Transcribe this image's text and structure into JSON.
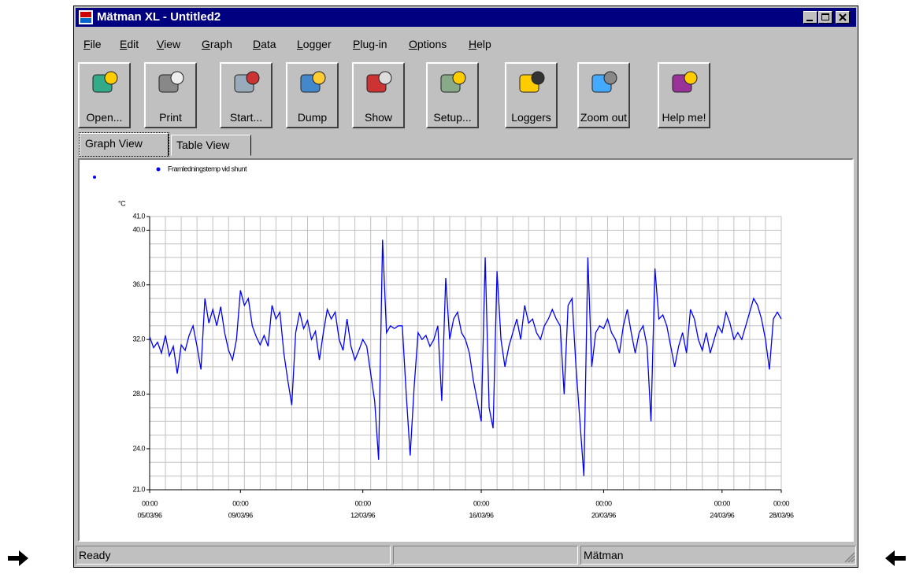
{
  "window": {
    "title": "Mätman XL - Untitled2"
  },
  "menu": [
    "File",
    "Edit",
    "View",
    "Graph",
    "Data",
    "Logger",
    "Plug-in",
    "Options",
    "Help"
  ],
  "toolbar": [
    "Open...",
    "Print",
    "Start...",
    "Dump",
    "Show",
    "Setup...",
    "Loggers",
    "Zoom out",
    "Help me!"
  ],
  "tabs": [
    "Graph View",
    "Table View"
  ],
  "status": [
    "Ready",
    "Mätman"
  ],
  "chart_data": {
    "type": "line",
    "ylabel": "°C",
    "series": [
      {
        "name": "Framledningstemp vid shunt",
        "color": "#0000ff",
        "values": [
          32.2,
          31.4,
          31.8,
          31.0,
          32.3,
          30.8,
          31.5,
          29.5,
          31.6,
          31.2,
          32.3,
          33.0,
          31.5,
          29.8,
          35.0,
          33.2,
          34.2,
          33.0,
          34.4,
          32.5,
          31.2,
          30.5,
          32.0,
          35.6,
          34.5,
          35.0,
          33.0,
          32.2,
          31.6,
          32.3,
          31.5,
          34.5,
          33.5,
          34.0,
          31.0,
          29.0,
          27.2,
          32.5,
          34.0,
          32.8,
          33.4,
          32.0,
          32.6,
          30.5,
          32.5,
          34.2,
          33.5,
          34.0,
          32.0,
          31.2,
          33.5,
          31.5,
          30.5,
          31.2,
          32.0,
          31.5,
          29.5,
          27.5,
          23.2,
          39.3,
          32.5,
          33.0,
          32.8,
          33.0,
          33.0,
          28.0,
          23.5,
          28.5,
          32.5,
          32.0,
          32.3,
          31.5,
          32.0,
          33.0,
          27.5,
          36.5,
          32.0,
          33.5,
          34.0,
          32.5,
          32.0,
          31.0,
          29.0,
          27.5,
          26.0,
          38.0,
          27.0,
          25.5,
          37.0,
          32.0,
          30.0,
          31.5,
          32.5,
          33.5,
          32.0,
          34.5,
          33.2,
          33.5,
          32.5,
          32.0,
          33.0,
          33.5,
          34.2,
          33.5,
          33.0,
          28.0,
          34.5,
          35.0,
          30.0,
          26.0,
          22.0,
          38.0,
          30.0,
          32.5,
          33.0,
          32.8,
          33.5,
          32.5,
          32.0,
          31.0,
          33.0,
          34.2,
          32.5,
          31.0,
          32.5,
          33.0,
          31.5,
          26.0,
          37.2,
          33.5,
          33.8,
          33.0,
          31.5,
          30.0,
          31.5,
          32.5,
          31.0,
          34.2,
          33.5,
          32.0,
          31.2,
          32.5,
          31.0,
          32.0,
          33.0,
          32.5,
          34.0,
          33.2,
          32.0,
          32.5,
          32.0,
          33.0,
          34.0,
          35.0,
          34.5,
          33.5,
          32.0,
          29.8,
          33.5,
          34.0,
          33.5
        ]
      }
    ],
    "xlim": [
      0,
      160
    ],
    "xticks": [
      {
        "value": 0,
        "label": [
          "00:00",
          "05/03/96"
        ]
      },
      {
        "value": 23,
        "label": [
          "00:00",
          "09/03/96"
        ]
      },
      {
        "value": 54,
        "label": [
          "00:00",
          "12/03/96"
        ]
      },
      {
        "value": 84,
        "label": [
          "00:00",
          "16/03/96"
        ]
      },
      {
        "value": 115,
        "label": [
          "00:00",
          "20/03/96"
        ]
      },
      {
        "value": 145,
        "label": [
          "00:00",
          "24/03/96"
        ]
      },
      {
        "value": 160,
        "label": [
          "00:00",
          "28/03/96"
        ]
      }
    ],
    "ylim": [
      21,
      41
    ],
    "yticks": [
      {
        "value": 21,
        "label": "21.0"
      },
      {
        "value": 24,
        "label": "24.0"
      },
      {
        "value": 28,
        "label": "28.0"
      },
      {
        "value": 32,
        "label": "32.0"
      },
      {
        "value": 36,
        "label": "36.0"
      },
      {
        "value": 40,
        "label": "40.0"
      },
      {
        "value": 41,
        "label": "41.0"
      }
    ],
    "grid": true,
    "minor_xticks": [
      0,
      4,
      8,
      12,
      16,
      20,
      24,
      28,
      32,
      36,
      40,
      44,
      48,
      52,
      56,
      60,
      64,
      68,
      72,
      76,
      80,
      84,
      88,
      92,
      96,
      100,
      104,
      108,
      112,
      116,
      120,
      124,
      128,
      132,
      136,
      140,
      144,
      148,
      152,
      156,
      160
    ],
    "minor_yticks": [
      21,
      22,
      23,
      24,
      25,
      26,
      27,
      28,
      29,
      30,
      31,
      32,
      33,
      34,
      35,
      36,
      37,
      38,
      39,
      40,
      41
    ]
  }
}
